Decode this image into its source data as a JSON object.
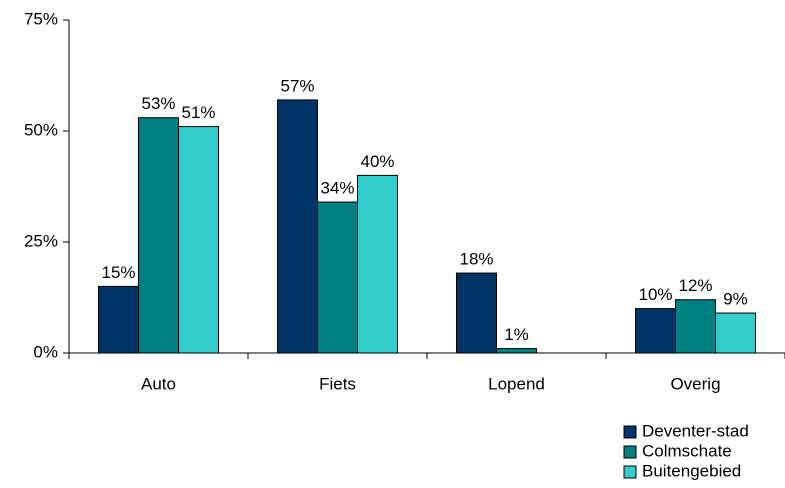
{
  "chart_data": {
    "type": "bar",
    "categories": [
      "Auto",
      "Fiets",
      "Lopend",
      "Overig"
    ],
    "series": [
      {
        "name": "Deventer-stad",
        "color": "#003366",
        "values": [
          15,
          57,
          18,
          10
        ],
        "value_labels": [
          "15%",
          "57%",
          "18%",
          "10%"
        ]
      },
      {
        "name": "Colmschate",
        "color": "#008080",
        "values": [
          53,
          34,
          1,
          12
        ],
        "value_labels": [
          "53%",
          "34%",
          "1%",
          "12%"
        ]
      },
      {
        "name": "Buitengebied",
        "color": "#33cccc",
        "values": [
          51,
          40,
          null,
          9
        ],
        "value_labels": [
          "51%",
          "40%",
          null,
          "9%"
        ]
      }
    ],
    "ylim": [
      0,
      75
    ],
    "yticks": [
      {
        "value": 0,
        "label": "0%"
      },
      {
        "value": 25,
        "label": "25%"
      },
      {
        "value": 50,
        "label": "50%"
      },
      {
        "value": 75,
        "label": "75%"
      }
    ]
  }
}
